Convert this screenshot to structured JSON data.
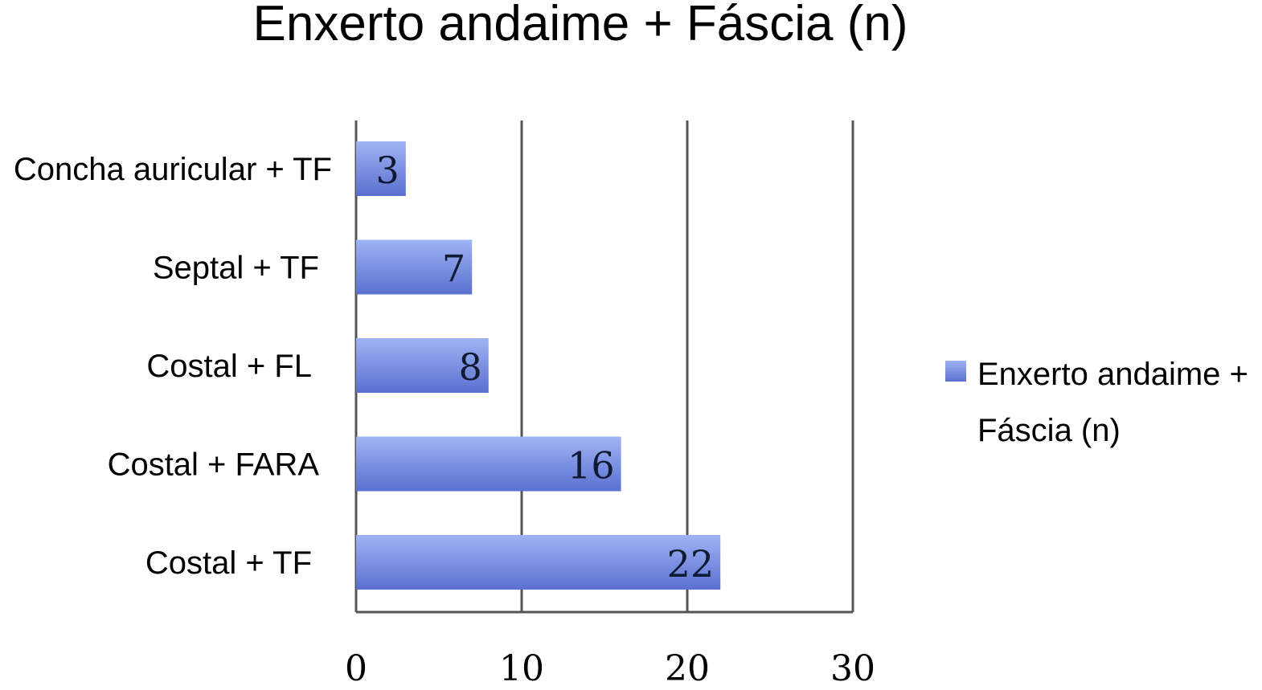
{
  "chart_data": {
    "type": "bar",
    "orientation": "horizontal",
    "title": "Enxerto andaime + Fáscia (n)",
    "categories": [
      "Concha auricular + TF",
      "Septal + TF",
      "Costal + FL",
      "Costal + FARA",
      "Costal + TF"
    ],
    "series": [
      {
        "name": "Enxerto andaime + Fáscia (n)",
        "values": [
          3,
          7,
          8,
          16,
          22
        ]
      }
    ],
    "data_labels": [
      "3",
      "7",
      "8",
      "16",
      "22"
    ],
    "xlim": [
      0,
      30
    ],
    "xticks": [
      "0",
      "10",
      "20",
      "30"
    ],
    "grid": true,
    "legend": {
      "position": "right",
      "lines": [
        "Enxerto andaime +",
        "Fáscia (n)"
      ]
    },
    "colors": {
      "bar_top": "#9fb4f4",
      "bar_bottom": "#5a70d0",
      "grid": "#555555"
    }
  }
}
